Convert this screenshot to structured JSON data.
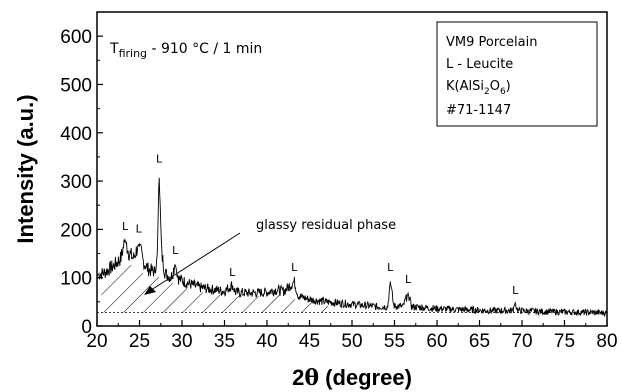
{
  "chart_data": {
    "type": "line",
    "xlabel_parts": {
      "prefix": "2",
      "theta": "θ",
      "suffix": " (degree)"
    },
    "ylabel": "Intensity (a.u.)",
    "xlim": [
      20,
      80
    ],
    "ylim": [
      0,
      650
    ],
    "xticks": [
      20,
      25,
      30,
      35,
      40,
      45,
      50,
      55,
      60,
      65,
      70,
      75,
      80
    ],
    "yticks": [
      0,
      100,
      200,
      300,
      400,
      500,
      600
    ],
    "grid": false,
    "annotation": {
      "t_symbol": "T",
      "t_subscript": "firing",
      "t_rest": " - 910 °C / 1 min"
    },
    "glassy_label": "glassy residual phase",
    "legend_box": {
      "line1": "VM9 Porcelain",
      "line2": "L - Leucite",
      "formula_parts": [
        "K(AlSi",
        "2",
        "O",
        "6",
        ")"
      ],
      "line4": "#71-1147"
    },
    "peak_markers": [
      {
        "label": "L",
        "x": 23.3,
        "y": 180
      },
      {
        "label": "L",
        "x": 24.9,
        "y": 175
      },
      {
        "label": "L",
        "x": 27.3,
        "y": 320
      },
      {
        "label": "L",
        "x": 29.2,
        "y": 130
      },
      {
        "label": "L",
        "x": 35.9,
        "y": 85
      },
      {
        "label": "L",
        "x": 43.2,
        "y": 95
      },
      {
        "label": "L",
        "x": 54.5,
        "y": 95
      },
      {
        "label": "L",
        "x": 56.6,
        "y": 70
      },
      {
        "label": "L",
        "x": 69.2,
        "y": 48
      }
    ],
    "baseline_y": 28,
    "series": [
      {
        "values": [
          {
            "x": 20,
            "y": 105
          },
          {
            "x": 21,
            "y": 112
          },
          {
            "x": 22,
            "y": 125
          },
          {
            "x": 22.8,
            "y": 140
          },
          {
            "x": 23.3,
            "y": 178
          },
          {
            "x": 23.8,
            "y": 150
          },
          {
            "x": 24.3,
            "y": 140
          },
          {
            "x": 24.9,
            "y": 170
          },
          {
            "x": 25.4,
            "y": 135
          },
          {
            "x": 26,
            "y": 118
          },
          {
            "x": 26.8,
            "y": 112
          },
          {
            "x": 27.1,
            "y": 150
          },
          {
            "x": 27.3,
            "y": 318
          },
          {
            "x": 27.6,
            "y": 150
          },
          {
            "x": 28,
            "y": 110
          },
          {
            "x": 28.7,
            "y": 100
          },
          {
            "x": 29.2,
            "y": 128
          },
          {
            "x": 29.6,
            "y": 98
          },
          {
            "x": 30.5,
            "y": 90
          },
          {
            "x": 32,
            "y": 80
          },
          {
            "x": 33.5,
            "y": 76
          },
          {
            "x": 35,
            "y": 72
          },
          {
            "x": 35.9,
            "y": 85
          },
          {
            "x": 36.3,
            "y": 70
          },
          {
            "x": 38,
            "y": 68
          },
          {
            "x": 40,
            "y": 70
          },
          {
            "x": 41,
            "y": 75
          },
          {
            "x": 42,
            "y": 72
          },
          {
            "x": 43.2,
            "y": 92
          },
          {
            "x": 43.7,
            "y": 62
          },
          {
            "x": 45,
            "y": 55
          },
          {
            "x": 47,
            "y": 50
          },
          {
            "x": 50,
            "y": 45
          },
          {
            "x": 53,
            "y": 40
          },
          {
            "x": 54.2,
            "y": 40
          },
          {
            "x": 54.5,
            "y": 92
          },
          {
            "x": 54.9,
            "y": 42
          },
          {
            "x": 56,
            "y": 40
          },
          {
            "x": 56.6,
            "y": 68
          },
          {
            "x": 57,
            "y": 40
          },
          {
            "x": 60,
            "y": 36
          },
          {
            "x": 63,
            "y": 34
          },
          {
            "x": 66,
            "y": 32
          },
          {
            "x": 68.9,
            "y": 32
          },
          {
            "x": 69.2,
            "y": 48
          },
          {
            "x": 69.5,
            "y": 32
          },
          {
            "x": 72,
            "y": 30
          },
          {
            "x": 75,
            "y": 29
          },
          {
            "x": 78,
            "y": 28
          },
          {
            "x": 80,
            "y": 27
          }
        ]
      }
    ]
  }
}
